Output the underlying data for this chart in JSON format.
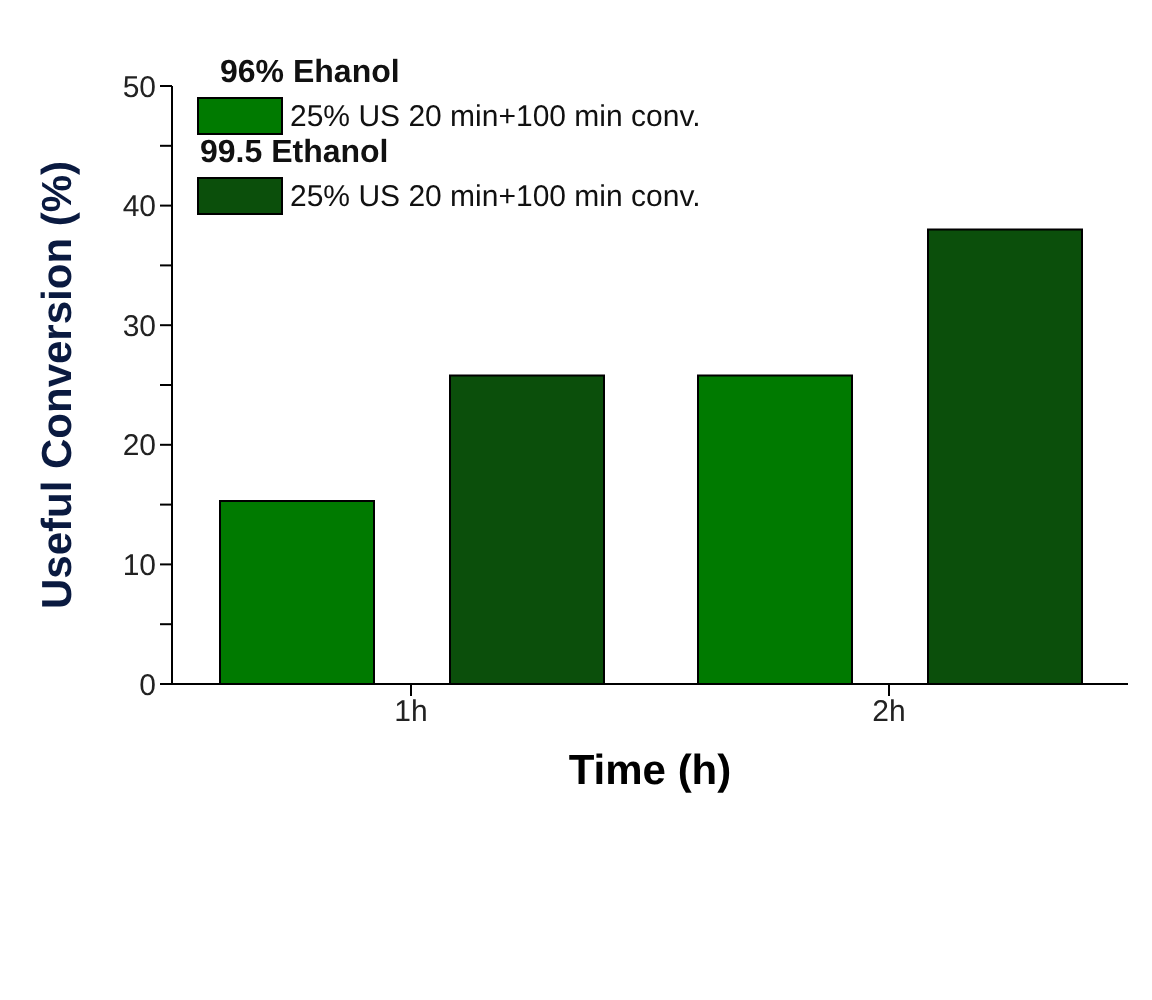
{
  "chart_data": {
    "type": "bar",
    "xlabel": "Time (h)",
    "ylabel": "Useful Conversion (%)",
    "categories": [
      "1h",
      "2h"
    ],
    "series": [
      {
        "name": "25% US 20 min+100 min conv.",
        "color": "#007a00",
        "values": [
          15.3,
          25.8
        ]
      },
      {
        "name": "25% US 20 min+100 min conv.",
        "color": "#0b4f0b",
        "values": [
          25.8,
          38
        ]
      }
    ],
    "annotations": [
      "96% Ehanol",
      "99.5 Ethanol"
    ],
    "ylim": [
      0,
      50
    ],
    "yticks": [
      0,
      {
        "value": 5,
        "label": null
      },
      10,
      {
        "value": 15,
        "label": null
      },
      20,
      {
        "value": 25,
        "label": null
      },
      30,
      {
        "value": 35,
        "label": null
      },
      40,
      {
        "value": 45,
        "label": null
      },
      50
    ],
    "legend": "top left",
    "grid": false
  }
}
